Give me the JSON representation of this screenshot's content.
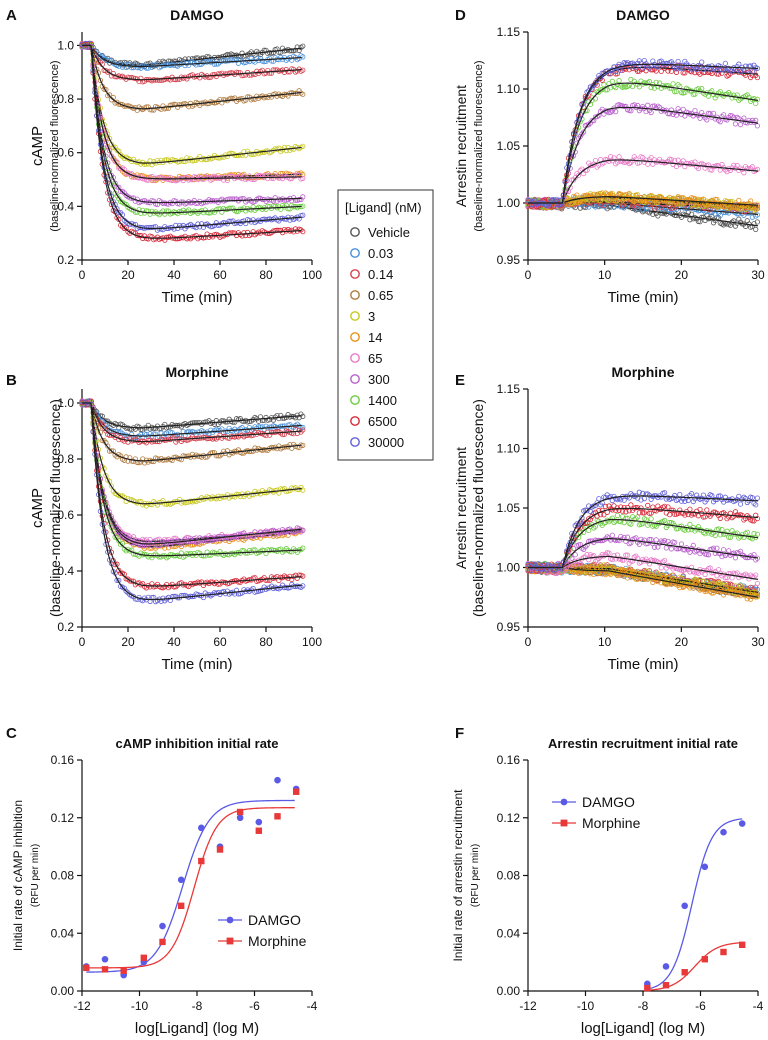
{
  "colors": {
    "vehicle": "#555555",
    "c0_03": "#4a90d9",
    "c0_14": "#d6404e",
    "c0_65": "#b07a3e",
    "c3": "#c8c820",
    "c14": "#e8901a",
    "c65": "#e87ac8",
    "c300": "#b860cc",
    "c1400": "#6ccc40",
    "c6500": "#d82838",
    "c30000": "#6060d8",
    "fit": "#222222",
    "damgo_line": "#5a5ae6",
    "morphine_line": "#e83838"
  },
  "legend": {
    "title": "[Ligand] (nM)",
    "entries": [
      "Vehicle",
      "0.03",
      "0.14",
      "0.65",
      "3",
      "14",
      "65",
      "300",
      "1400",
      "6500",
      "30000"
    ]
  },
  "chart_data": [
    {
      "panel": "A",
      "type": "scatter",
      "title": "DAMGO",
      "ylabel": "cAMP",
      "ylabel2": "(baseline-normalized fluorescence)",
      "xlabel": "Time (min)",
      "xlim": [
        0,
        100
      ],
      "ylim": [
        0.2,
        1.05
      ],
      "xticks": [
        0,
        20,
        40,
        60,
        80,
        100
      ],
      "yticks": [
        0.2,
        0.4,
        0.6,
        0.8,
        1.0
      ],
      "ytick_labels": [
        "0.2",
        "0.4",
        "0.6",
        "0.8",
        "1.0"
      ],
      "curve_model": "cAMP",
      "series": [
        {
          "name": "Vehicle",
          "min": 0.925,
          "end": 0.99
        },
        {
          "name": "0.03",
          "min": 0.92,
          "end": 0.955
        },
        {
          "name": "0.14",
          "min": 0.87,
          "end": 0.91
        },
        {
          "name": "0.65",
          "min": 0.76,
          "end": 0.825
        },
        {
          "name": "3",
          "min": 0.555,
          "end": 0.62
        },
        {
          "name": "14",
          "min": 0.5,
          "end": 0.52
        },
        {
          "name": "65",
          "min": 0.5,
          "end": 0.51
        },
        {
          "name": "300",
          "min": 0.41,
          "end": 0.43
        },
        {
          "name": "1400",
          "min": 0.37,
          "end": 0.4
        },
        {
          "name": "6500",
          "min": 0.275,
          "end": 0.31
        },
        {
          "name": "30000",
          "min": 0.31,
          "end": 0.36
        }
      ]
    },
    {
      "panel": "B",
      "type": "scatter",
      "title": "Morphine",
      "ylabel": "cAMP",
      "ylabel2": "(baseline-normalized fluorescence)",
      "xlabel": "Time (min)",
      "xlim": [
        0,
        100
      ],
      "ylim": [
        0.2,
        1.05
      ],
      "xticks": [
        0,
        20,
        40,
        60,
        80,
        100
      ],
      "yticks": [
        0.2,
        0.4,
        0.6,
        0.8,
        1.0
      ],
      "ytick_labels": [
        "0.2",
        "0.4",
        "0.6",
        "0.8",
        "1.0"
      ],
      "curve_model": "cAMP",
      "series": [
        {
          "name": "Vehicle",
          "min": 0.91,
          "end": 0.955
        },
        {
          "name": "0.03",
          "min": 0.88,
          "end": 0.92
        },
        {
          "name": "0.14",
          "min": 0.86,
          "end": 0.9
        },
        {
          "name": "0.65",
          "min": 0.79,
          "end": 0.85
        },
        {
          "name": "3",
          "min": 0.635,
          "end": 0.695
        },
        {
          "name": "14",
          "min": 0.48,
          "end": 0.54
        },
        {
          "name": "65",
          "min": 0.5,
          "end": 0.545
        },
        {
          "name": "300",
          "min": 0.49,
          "end": 0.55
        },
        {
          "name": "1400",
          "min": 0.45,
          "end": 0.475
        },
        {
          "name": "6500",
          "min": 0.34,
          "end": 0.38
        },
        {
          "name": "30000",
          "min": 0.29,
          "end": 0.35
        }
      ]
    },
    {
      "panel": "D",
      "type": "scatter",
      "title": "DAMGO",
      "ylabel": "Arrestin recruitment",
      "ylabel2": "(baseline-normalized fluorescence)",
      "xlabel": "Time (min)",
      "xlim": [
        0,
        30
      ],
      "ylim": [
        0.95,
        1.15
      ],
      "xticks": [
        0,
        10,
        20,
        30
      ],
      "yticks": [
        0.95,
        1.0,
        1.05,
        1.1,
        1.15
      ],
      "ytick_labels": [
        "0.95",
        "1.00",
        "1.05",
        "1.10",
        "1.15"
      ],
      "curve_model": "arrestin",
      "series": [
        {
          "name": "Vehicle",
          "peak": 0.998,
          "end": 0.98
        },
        {
          "name": "0.03",
          "peak": 1.0,
          "end": 0.99
        },
        {
          "name": "0.14",
          "peak": 1.001,
          "end": 0.995
        },
        {
          "name": "0.65",
          "peak": 1.005,
          "end": 0.996
        },
        {
          "name": "3",
          "peak": 1.006,
          "end": 0.997
        },
        {
          "name": "14",
          "peak": 1.006,
          "end": 0.998
        },
        {
          "name": "65",
          "peak": 1.04,
          "end": 1.028
        },
        {
          "name": "300",
          "peak": 1.088,
          "end": 1.07
        },
        {
          "name": "1400",
          "peak": 1.11,
          "end": 1.09
        },
        {
          "name": "6500",
          "peak": 1.122,
          "end": 1.113
        },
        {
          "name": "30000",
          "peak": 1.124,
          "end": 1.118
        }
      ]
    },
    {
      "panel": "E",
      "type": "scatter",
      "title": "Morphine",
      "ylabel": "Arrestin recruitment",
      "ylabel2": "(baseline-normalized fluorescence)",
      "xlabel": "Time (min)",
      "xlim": [
        0,
        30
      ],
      "ylim": [
        0.95,
        1.15
      ],
      "xticks": [
        0,
        10,
        20,
        30
      ],
      "yticks": [
        0.95,
        1.0,
        1.05,
        1.1,
        1.15
      ],
      "ytick_labels": [
        "0.95",
        "1.00",
        "1.05",
        "1.10",
        "1.15"
      ],
      "curve_model": "arrestin",
      "series": [
        {
          "name": "Vehicle",
          "peak": 0.998,
          "end": 0.978
        },
        {
          "name": "0.03",
          "peak": 0.998,
          "end": 0.98
        },
        {
          "name": "0.14",
          "peak": 0.999,
          "end": 0.98
        },
        {
          "name": "0.65",
          "peak": 0.998,
          "end": 0.977
        },
        {
          "name": "3",
          "peak": 0.999,
          "end": 0.979
        },
        {
          "name": "14",
          "peak": 0.997,
          "end": 0.975
        },
        {
          "name": "65",
          "peak": 1.01,
          "end": 0.99
        },
        {
          "name": "300",
          "peak": 1.026,
          "end": 1.008
        },
        {
          "name": "1400",
          "peak": 1.043,
          "end": 1.025
        },
        {
          "name": "6500",
          "peak": 1.052,
          "end": 1.042
        },
        {
          "name": "30000",
          "peak": 1.062,
          "end": 1.056
        }
      ]
    },
    {
      "panel": "C",
      "type": "scatter",
      "title": "cAMP inhibition initial rate",
      "ylabel": "Initial rate of cAMP inhibition",
      "ylabel2": "(RFU per min)",
      "xlabel": "log[Ligand] (log M)",
      "xlim": [
        -12,
        -4
      ],
      "ylim": [
        0,
        0.16
      ],
      "xticks": [
        -12,
        -10,
        -8,
        -6,
        -4
      ],
      "xtick_labels": [
        "-12",
        "-10",
        "-8",
        "-6",
        "-4"
      ],
      "yticks": [
        0,
        0.04,
        0.08,
        0.12,
        0.16
      ],
      "ytick_labels": [
        "0.00",
        "0.04",
        "0.08",
        "0.12",
        "0.16"
      ],
      "legend_position": "lower-right",
      "series": [
        {
          "name": "DAMGO",
          "marker": "circle",
          "x": [
            -11.85,
            -11.2,
            -10.55,
            -9.85,
            -9.2,
            -8.55,
            -7.85,
            -7.2,
            -6.5,
            -5.85,
            -5.2,
            -4.55
          ],
          "y": [
            0.017,
            0.022,
            0.011,
            0.02,
            0.045,
            0.077,
            0.113,
            0.1,
            0.12,
            0.117,
            0.146,
            0.14
          ],
          "fit": {
            "bottom": 0.013,
            "top": 0.132,
            "logEC50": -8.5,
            "hill": 0.95
          }
        },
        {
          "name": "Morphine",
          "marker": "square",
          "x": [
            -11.85,
            -11.2,
            -10.55,
            -9.85,
            -9.2,
            -8.55,
            -7.85,
            -7.2,
            -6.5,
            -5.85,
            -5.2,
            -4.55
          ],
          "y": [
            0.016,
            0.015,
            0.014,
            0.023,
            0.034,
            0.059,
            0.09,
            0.098,
            0.124,
            0.111,
            0.121,
            0.138
          ],
          "fit": {
            "bottom": 0.016,
            "top": 0.127,
            "logEC50": -8.1,
            "hill": 1.1
          }
        }
      ]
    },
    {
      "panel": "F",
      "type": "scatter",
      "title": "Arrestin recruitment initial rate",
      "ylabel": "Initial rate of arrestin recruitment",
      "ylabel2": "(RFU per min)",
      "xlabel": "log[Ligand] (log M)",
      "xlim": [
        -12,
        -4
      ],
      "ylim": [
        0,
        0.16
      ],
      "xticks": [
        -12,
        -10,
        -8,
        -6,
        -4
      ],
      "xtick_labels": [
        "-12",
        "-10",
        "-8",
        "-6",
        "-4"
      ],
      "yticks": [
        0,
        0.04,
        0.08,
        0.12,
        0.16
      ],
      "ytick_labels": [
        "0.00",
        "0.04",
        "0.08",
        "0.12",
        "0.16"
      ],
      "legend_position": "upper-left",
      "series": [
        {
          "name": "DAMGO",
          "marker": "circle",
          "x": [
            -7.85,
            -7.2,
            -6.55,
            -5.85,
            -5.2,
            -4.55
          ],
          "y": [
            0.005,
            0.017,
            0.059,
            0.086,
            0.11,
            0.116
          ],
          "fit": {
            "bottom": 0.0,
            "top": 0.12,
            "logEC50": -6.3,
            "hill": 1.25
          },
          "fit_range": [
            -7.85,
            -4.55
          ]
        },
        {
          "name": "Morphine",
          "marker": "square",
          "x": [
            -7.85,
            -7.2,
            -6.55,
            -5.85,
            -5.2,
            -4.55
          ],
          "y": [
            0.002,
            0.004,
            0.013,
            0.022,
            0.027,
            0.032
          ],
          "fit": {
            "bottom": 0.0,
            "top": 0.034,
            "logEC50": -6.2,
            "hill": 1.1
          },
          "fit_range": [
            -7.85,
            -4.55
          ]
        }
      ]
    }
  ]
}
